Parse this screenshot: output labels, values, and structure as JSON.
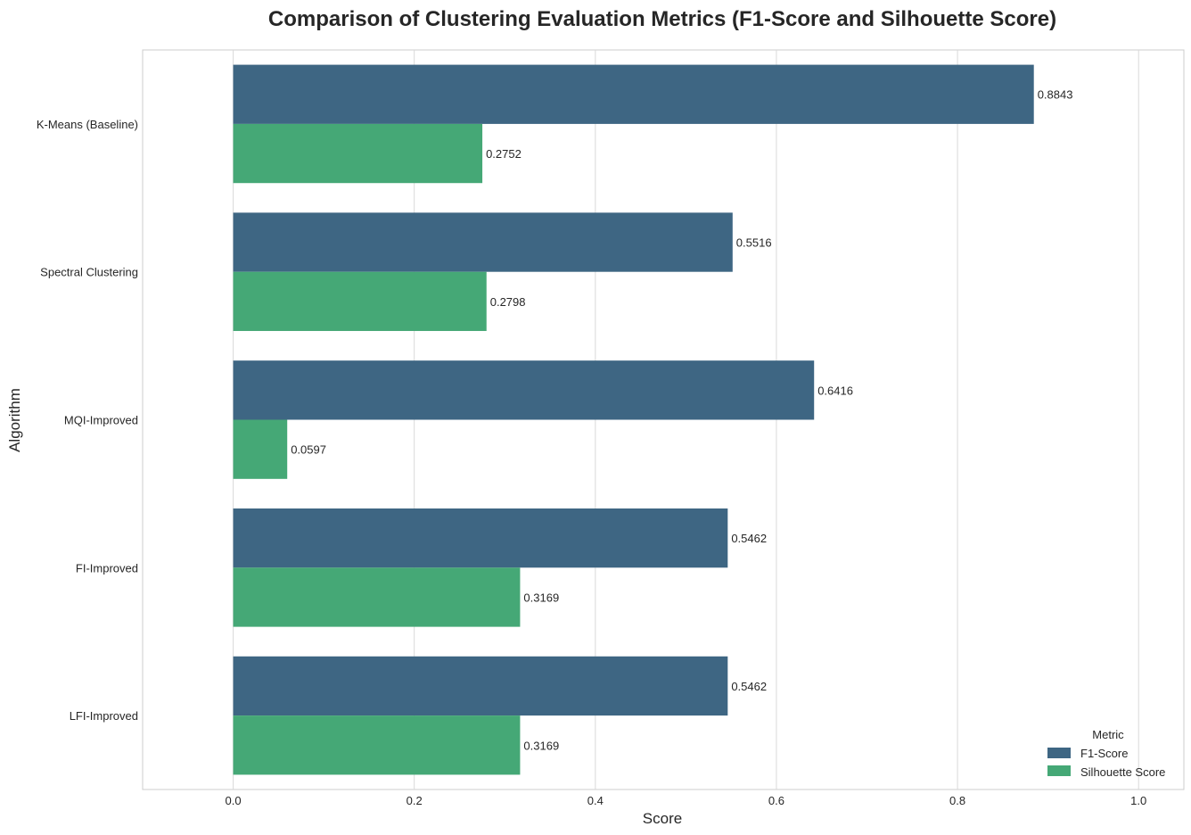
{
  "chart_data": {
    "type": "bar",
    "orientation": "horizontal",
    "title": "Comparison of Clustering Evaluation Metrics (F1-Score and Silhouette Score)",
    "xlabel": "Score",
    "ylabel": "Algorithm",
    "categories": [
      "K-Means (Baseline)",
      "Spectral Clustering",
      "MQI-Improved",
      "FI-Improved",
      "LFI-Improved"
    ],
    "series": [
      {
        "name": "F1-Score",
        "color": "#3e6683",
        "values": [
          0.8843,
          0.5516,
          0.6416,
          0.5462,
          0.5462
        ]
      },
      {
        "name": "Silhouette Score",
        "color": "#45a876",
        "values": [
          0.2752,
          0.2798,
          0.0597,
          0.3169,
          0.3169
        ]
      }
    ],
    "xlim": [
      -0.1,
      1.05
    ],
    "xticks": [
      "0.0",
      "0.2",
      "0.4",
      "0.6",
      "0.8",
      "1.0"
    ],
    "grid": true,
    "legend": {
      "title": "Metric",
      "position": "lower-right"
    }
  }
}
